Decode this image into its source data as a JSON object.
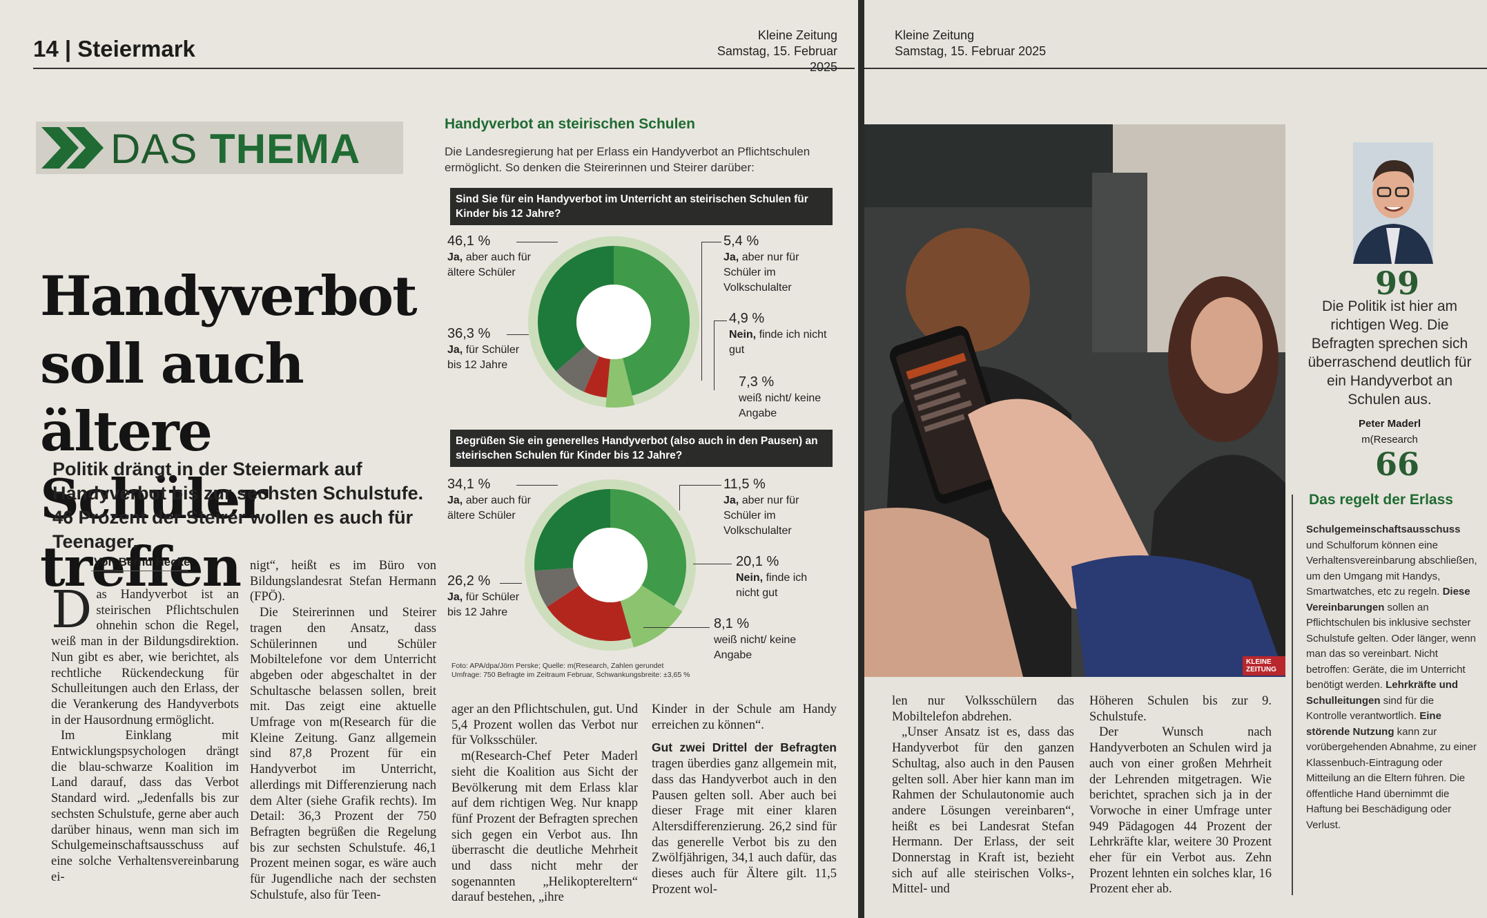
{
  "left_page": {
    "folio": "14 | Steiermark",
    "paper_name": "Kleine Zeitung",
    "date": "Samstag, 15. Februar 2025",
    "kicker_light": "DAS ",
    "kicker_bold": "THEMA",
    "headline": "Handyverbot soll auch ältere Schüler treffen",
    "subhead": "Politik drängt in der Steiermark auf Handyverbot bis zur sechsten Schulstufe. 46 Prozent der Steirer wollen es auch für Teenager.",
    "byline": "Von Bernd Hecke",
    "dropcap": "D",
    "col1_p1": "as Handyverbot ist an steirischen Pflichtschulen ohnehin schon die Regel, weiß man in der Bildungsdirektion. Nun gibt es aber, wie berichtet, als rechtliche Rückendeckung für Schulleitungen auch den Erlass, der die Verankerung des Handyverbots in der Hausordnung ermöglicht.",
    "col1_p2": "Im Einklang mit Entwicklungspsychologen drängt die blau-schwarze Koalition im Land darauf, dass das Verbot Standard wird. „Jedenfalls bis zur sechsten Schulstufe, gerne aber auch darüber hinaus, wenn man sich im Schulgemeinschaftsausschuss auf eine solche Verhaltensvereinbarung ei-",
    "col2_p1": "nigt“, heißt es im Büro von Bildungslandesrat Stefan Hermann (FPÖ).",
    "col2_p2": "Die Steirerinnen und Steirer tragen den Ansatz, dass Schülerinnen und Schüler Mobiltelefone vor dem Unterricht abgeben oder abgeschaltet in der Schultasche belassen sollen, breit mit. Das zeigt eine aktuelle Umfrage von m(Research für die Kleine Zeitung. Ganz allgemein sind 87,8 Prozent für ein Handyverbot im Unterricht, allerdings mit Differenzierung nach dem Alter (siehe Grafik rechts). Im Detail: 36,3 Prozent der 750 Befragten begrüßen die Regelung bis zur sechsten Schulstufe. 46,1 Prozent meinen sogar, es wäre auch für Jugendliche nach der sechsten Schulstufe, also für Teen-",
    "col3_p1": "ager an den Pflichtschulen, gut. Und 5,4 Prozent wollen das Verbot nur für Volksschüler.",
    "col3_p2": "m(Research-Chef Peter Maderl sieht die Koalition aus Sicht der Bevölkerung mit dem Erlass klar auf dem richtigen Weg. Nur knapp fünf Prozent der Befragten sprechen sich gegen ein Verbot aus. Ihn überrascht die deutliche Mehrheit und dass nicht mehr der sogenannten „Helikoptereltern“ darauf bestehen, „ihre",
    "col4_p1": "Kinder in der Schule am Handy erreichen zu können“.",
    "col4_lead": "Gut zwei Drittel der Befragten",
    "col4_p2": " tragen überdies ganz allgemein mit, dass das Handyverbot auch in den Pausen gelten soll. Aber auch bei dieser Frage mit einer klaren Altersdifferenzierung. 26,2 sind für das generelle Verbot bis zu den Zwölfjährigen, 34,1 auch dafür, das dieses auch für Ältere gilt. 11,5 Prozent wol-"
  },
  "graphic": {
    "title": "Handyverbot an steirischen Schulen",
    "intro": "Die Landesregierung hat per Erlass ein Handyverbot an Pflichtschulen ermöglicht. So denken die Steirerinnen und Steirer darüber:",
    "q1": "Sind Sie für ein Handyverbot im Unterricht an steirischen Schulen für Kinder bis 12 Jahre?",
    "q2": "Begrüßen Sie ein generelles Handyverbot (also auch in den Pausen) an steirischen Schulen für Kinder bis 12 Jahre?",
    "colors": {
      "dark_green": "#1e7a3a",
      "mid_green": "#3f9a4a",
      "light_green": "#8cc36f",
      "red": "#b3261e",
      "grey": "#6e6a66"
    },
    "donut1": [
      {
        "pct": "46,1 %",
        "bold": "Ja,",
        "text": " aber auch für ältere Schüler",
        "value": 46.1
      },
      {
        "pct": "5,4 %",
        "bold": "Ja,",
        "text": " aber nur für Schüler im Volkschulalter",
        "value": 5.4
      },
      {
        "pct": "4,9 %",
        "bold": "Nein,",
        "text": " finde ich nicht gut",
        "value": 4.9
      },
      {
        "pct": "7,3 %",
        "bold": "",
        "text": "weiß nicht/ keine Angabe",
        "value": 7.3
      },
      {
        "pct": "36,3 %",
        "bold": "Ja,",
        "text": " für Schüler bis 12 Jahre",
        "value": 36.3
      }
    ],
    "donut2": [
      {
        "pct": "34,1 %",
        "bold": "Ja,",
        "text": " aber auch für ältere Schüler",
        "value": 34.1
      },
      {
        "pct": "11,5 %",
        "bold": "Ja,",
        "text": " aber nur für Schüler im Volkschulalter",
        "value": 11.5
      },
      {
        "pct": "20,1 %",
        "bold": "Nein,",
        "text": " finde ich nicht gut",
        "value": 20.1
      },
      {
        "pct": "8,1 %",
        "bold": "",
        "text": "weiß nicht/ keine Angabe",
        "value": 8.1
      },
      {
        "pct": "26,2 %",
        "bold": "Ja,",
        "text": " für Schüler bis 12 Jahre",
        "value": 26.2
      }
    ],
    "source1": "Foto: APA/dpa/Jörn Perske; Quelle: m(Research, Zahlen gerundet",
    "source2": "Umfrage: 750 Befragte im Zeitraum Februar, Schwankungsbreite: ±3,65 %"
  },
  "right_page": {
    "paper_name": "Kleine Zeitung",
    "date": "Samstag, 15. Februar 2025",
    "photo_credit": "KLEINE ZEITUNG",
    "quote": "Die Politik ist hier am richtigen Weg. Die Befragten sprechen sich überraschend deutlich für ein Handyverbot an Schulen aus.",
    "quote_name": "Peter Maderl",
    "quote_org": "m(Research",
    "quote_open": "99",
    "quote_close": "66",
    "col1_p1": "len nur Volksschülern das Mobiltelefon abdrehen.",
    "col1_p2": "„Unser Ansatz ist es, dass das Handyverbot für den ganzen Schultag, also auch in den Pausen gelten soll. Aber hier kann man im Rahmen der Schulautonomie auch andere Lösungen vereinbaren“, heißt es bei Landesrat Stefan Hermann. Der Erlass, der seit Donnerstag in Kraft ist, bezieht sich auf alle steirischen Volks-, Mittel- und",
    "col2_p1": "Höheren Schulen bis zur 9. Schulstufe.",
    "col2_p2": "Der Wunsch nach Handyverboten an Schulen wird ja auch von einer großen Mehrheit der Lehrenden mitgetragen. Wie berichtet, sprachen sich ja in der Vorwoche in einer Umfrage unter 949 Pädagogen 44 Prozent der Lehrkräfte klar, weitere 30 Prozent eher für ein Verbot aus. Zehn Prozent lehnten ein solches klar, 16 Prozent eher ab.",
    "box_title": "Das regelt der Erlass",
    "box_b1": "Schulgemeinschaftsausschuss",
    "box_t1": " und Schulforum können eine Verhaltensvereinbarung abschließen, um den Umgang mit Handys, Smartwatches, etc zu regeln. ",
    "box_b2": "Diese Vereinbarungen",
    "box_t2": " sollen an Pflichtschulen bis inklusive sechster Schulstufe gelten. Oder länger, wenn man das so vereinbart. Nicht betroffen: Geräte, die im Unterricht benötigt werden. ",
    "box_b3": "Lehrkräfte und Schulleitungen",
    "box_t3": " sind für die Kontrolle verantwortlich. ",
    "box_b4": "Eine störende Nutzung",
    "box_t4": " kann zur vorübergehenden Abnahme, zu einer Klassenbuch-Eintragung oder Mitteilung an die Eltern führen. Die öffentliche Hand übernimmt die Haftung bei Beschädigung oder Verlust."
  }
}
